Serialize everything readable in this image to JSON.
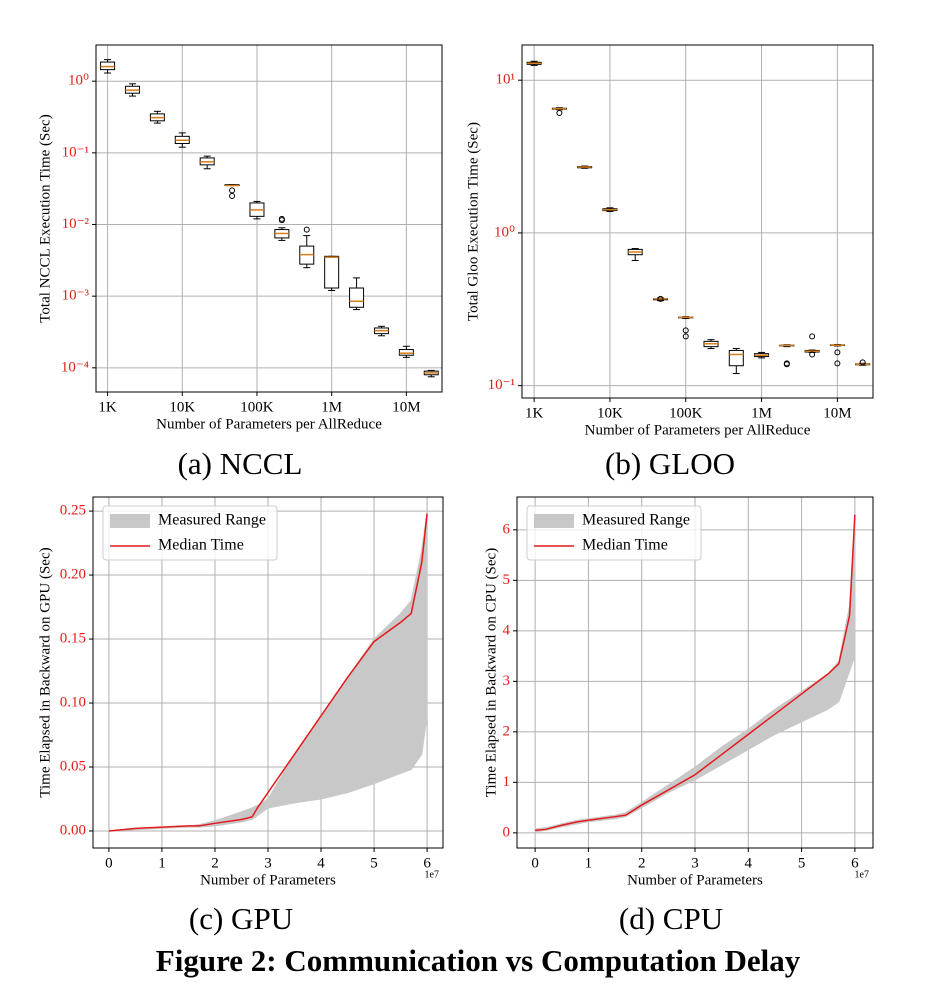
{
  "figure_caption": "Figure 2: Communication vs Computation Delay",
  "chart_data": [
    {
      "type": "box",
      "caption": "(a) NCCL",
      "xlabel": "Number of Parameters per AllReduce",
      "ylabel": "Total NCCL Execution Time (Sec)",
      "xscale": "log",
      "yscale": "log",
      "grid": true,
      "box_color": "#000000",
      "median_color": "#d97c1a",
      "xlim": [
        700,
        30000000
      ],
      "ylim": [
        4.6e-05,
        3.2
      ],
      "xticks": [
        {
          "value": 1000,
          "label": "1K"
        },
        {
          "value": 10000,
          "label": "10K"
        },
        {
          "value": 100000,
          "label": "100K"
        },
        {
          "value": 1000000,
          "label": "1M"
        },
        {
          "value": 10000000,
          "label": "10M"
        }
      ],
      "yticks": [
        {
          "value": 0.0001,
          "label": "10⁻⁴"
        },
        {
          "value": 0.001,
          "label": "10⁻³"
        },
        {
          "value": 0.01,
          "label": "10⁻²"
        },
        {
          "value": 0.1,
          "label": "10⁻¹"
        },
        {
          "value": 1,
          "label": "10⁰"
        }
      ],
      "x": [
        1000,
        2154,
        4642,
        10000,
        21544,
        46416,
        100000,
        215443,
        464159,
        1000000,
        2154435,
        4641589,
        10000000,
        21544347
      ],
      "whislo": [
        1.3,
        0.62,
        0.26,
        0.12,
        0.06,
        0.035,
        0.012,
        0.006,
        0.0025,
        0.0012,
        0.00065,
        0.00028,
        0.00014,
        7.5e-05
      ],
      "q1": [
        1.45,
        0.68,
        0.28,
        0.135,
        0.068,
        0.035,
        0.013,
        0.0065,
        0.0028,
        0.0013,
        0.0007,
        0.0003,
        0.00015,
        8e-05
      ],
      "median": [
        1.6,
        0.75,
        0.31,
        0.15,
        0.075,
        0.035,
        0.016,
        0.0075,
        0.0038,
        0.0035,
        0.00085,
        0.00033,
        0.00016,
        8.5e-05
      ],
      "q3": [
        1.85,
        0.85,
        0.35,
        0.17,
        0.085,
        0.036,
        0.02,
        0.0085,
        0.005,
        0.0036,
        0.0013,
        0.00036,
        0.00018,
        9e-05
      ],
      "whishi": [
        2.0,
        0.92,
        0.38,
        0.19,
        0.09,
        0.036,
        0.021,
        0.009,
        0.007,
        0.0036,
        0.0018,
        0.00038,
        0.0002,
        9.2e-05
      ],
      "fliers": [
        [],
        [],
        [],
        [],
        [],
        [
          0.03,
          0.025
        ],
        [],
        [
          0.012,
          0.0115
        ],
        [
          0.0085
        ],
        [],
        [],
        [],
        [],
        []
      ]
    },
    {
      "type": "box",
      "caption": "(b) GLOO",
      "xlabel": "Number of Parameters per AllReduce",
      "ylabel": "Total Gloo Execution Time (Sec)",
      "xscale": "log",
      "yscale": "log",
      "grid": true,
      "box_color": "#000000",
      "median_color": "#d97c1a",
      "xlim": [
        692,
        29500000
      ],
      "ylim": [
        0.083,
        17
      ],
      "xticks": [
        {
          "value": 1000,
          "label": "1K"
        },
        {
          "value": 10000,
          "label": "10K"
        },
        {
          "value": 100000,
          "label": "100K"
        },
        {
          "value": 1000000,
          "label": "1M"
        },
        {
          "value": 10000000,
          "label": "10M"
        }
      ],
      "yticks": [
        {
          "value": 0.1,
          "label": "10⁻¹"
        },
        {
          "value": 1,
          "label": "10⁰"
        },
        {
          "value": 10,
          "label": "10¹"
        }
      ],
      "x": [
        1000,
        2154,
        4642,
        10000,
        21544,
        46416,
        100000,
        215443,
        464159,
        1000000,
        2154435,
        4641589,
        10000000,
        21544347
      ],
      "whislo": [
        12.5,
        6.4,
        2.65,
        1.38,
        0.66,
        0.36,
        0.275,
        0.175,
        0.12,
        0.152,
        0.18,
        0.165,
        0.182,
        0.136
      ],
      "q1": [
        12.7,
        6.45,
        2.67,
        1.4,
        0.72,
        0.365,
        0.278,
        0.18,
        0.135,
        0.155,
        0.182,
        0.166,
        0.183,
        0.137
      ],
      "median": [
        12.9,
        6.5,
        2.7,
        1.42,
        0.75,
        0.37,
        0.28,
        0.188,
        0.16,
        0.158,
        0.183,
        0.168,
        0.184,
        0.138
      ],
      "q3": [
        13.1,
        6.55,
        2.72,
        1.44,
        0.78,
        0.37,
        0.281,
        0.195,
        0.17,
        0.162,
        0.184,
        0.17,
        0.185,
        0.139
      ],
      "whishi": [
        13.3,
        6.6,
        2.74,
        1.46,
        0.79,
        0.375,
        0.283,
        0.2,
        0.175,
        0.165,
        0.185,
        0.171,
        0.186,
        0.14
      ],
      "fliers": [
        [],
        [
          6.1
        ],
        [],
        [],
        [],
        [
          0.37
        ],
        [
          0.23,
          0.21
        ],
        [],
        [],
        [],
        [
          0.14,
          0.138
        ],
        [
          0.21,
          0.16
        ],
        [
          0.165,
          0.14
        ],
        [
          0.142
        ]
      ]
    },
    {
      "type": "line",
      "caption": "(c) GPU",
      "xlabel": "Number of Parameters",
      "ylabel": "Time Elapsed in Backward on GPU (Sec)",
      "x_offset_label": "1e7",
      "grid": true,
      "legend": "upper left",
      "xlim": [
        -0.3,
        6.3
      ],
      "ylim": [
        -0.0133,
        0.261
      ],
      "xticks": [
        0,
        1,
        2,
        3,
        4,
        5,
        6
      ],
      "yticks": [
        {
          "value": 0,
          "label": "0.00"
        },
        {
          "value": 0.05,
          "label": "0.05"
        },
        {
          "value": 0.1,
          "label": "0.10"
        },
        {
          "value": 0.15,
          "label": "0.15"
        },
        {
          "value": 0.2,
          "label": "0.20"
        },
        {
          "value": 0.25,
          "label": "0.25"
        }
      ],
      "x": [
        0,
        0.5,
        1,
        1.5,
        1.7,
        2,
        2.5,
        2.7,
        2.8,
        3,
        3.5,
        4,
        4.5,
        5,
        5.5,
        5.7,
        5.9,
        6.0
      ],
      "series": [
        {
          "name": "Measured Range",
          "color": "#c8c8c8",
          "lower": [
            0,
            0.001,
            0.002,
            0.003,
            0.003,
            0.004,
            0.007,
            0.009,
            0.012,
            0.018,
            0.022,
            0.025,
            0.03,
            0.037,
            0.045,
            0.048,
            0.06,
            0.09
          ],
          "upper": [
            0,
            0.002,
            0.003,
            0.004,
            0.005,
            0.008,
            0.015,
            0.018,
            0.02,
            0.025,
            0.06,
            0.09,
            0.12,
            0.15,
            0.17,
            0.18,
            0.22,
            0.25
          ]
        },
        {
          "name": "Median Time",
          "color": "#e41a1c",
          "values": [
            0,
            0.002,
            0.003,
            0.004,
            0.004,
            0.006,
            0.009,
            0.011,
            0.018,
            0.03,
            0.06,
            0.09,
            0.12,
            0.148,
            0.163,
            0.17,
            0.21,
            0.248
          ]
        }
      ]
    },
    {
      "type": "line",
      "caption": "(d) CPU",
      "xlabel": "Number of Parameters",
      "ylabel": "Time Elapsed in Backward on CPU (Sec)",
      "x_offset_label": "1e7",
      "grid": true,
      "legend": "upper left",
      "xlim": [
        -0.34,
        6.34
      ],
      "ylim": [
        -0.3,
        6.65
      ],
      "xticks": [
        0,
        1,
        2,
        3,
        4,
        5,
        6
      ],
      "yticks": [
        0,
        1,
        2,
        3,
        4,
        5,
        6
      ],
      "x": [
        0,
        0.2,
        0.5,
        0.8,
        1,
        1.5,
        1.7,
        2,
        2.5,
        3,
        3.5,
        4,
        4.5,
        5,
        5.5,
        5.7,
        5.9,
        6
      ],
      "series": [
        {
          "name": "Measured Range",
          "color": "#c8c8c8",
          "lower": [
            0.02,
            0.05,
            0.12,
            0.18,
            0.22,
            0.28,
            0.32,
            0.5,
            0.8,
            1.05,
            1.35,
            1.65,
            1.95,
            2.2,
            2.45,
            2.6,
            3.2,
            3.5
          ],
          "upper": [
            0.08,
            0.1,
            0.18,
            0.25,
            0.28,
            0.35,
            0.4,
            0.6,
            0.95,
            1.3,
            1.7,
            2.05,
            2.45,
            2.8,
            3.15,
            3.4,
            4.5,
            6.3
          ]
        },
        {
          "name": "Median Time",
          "color": "#e41a1c",
          "values": [
            0.05,
            0.07,
            0.15,
            0.22,
            0.25,
            0.32,
            0.35,
            0.55,
            0.85,
            1.15,
            1.55,
            1.95,
            2.35,
            2.75,
            3.15,
            3.35,
            4.3,
            6.3
          ]
        }
      ]
    }
  ]
}
